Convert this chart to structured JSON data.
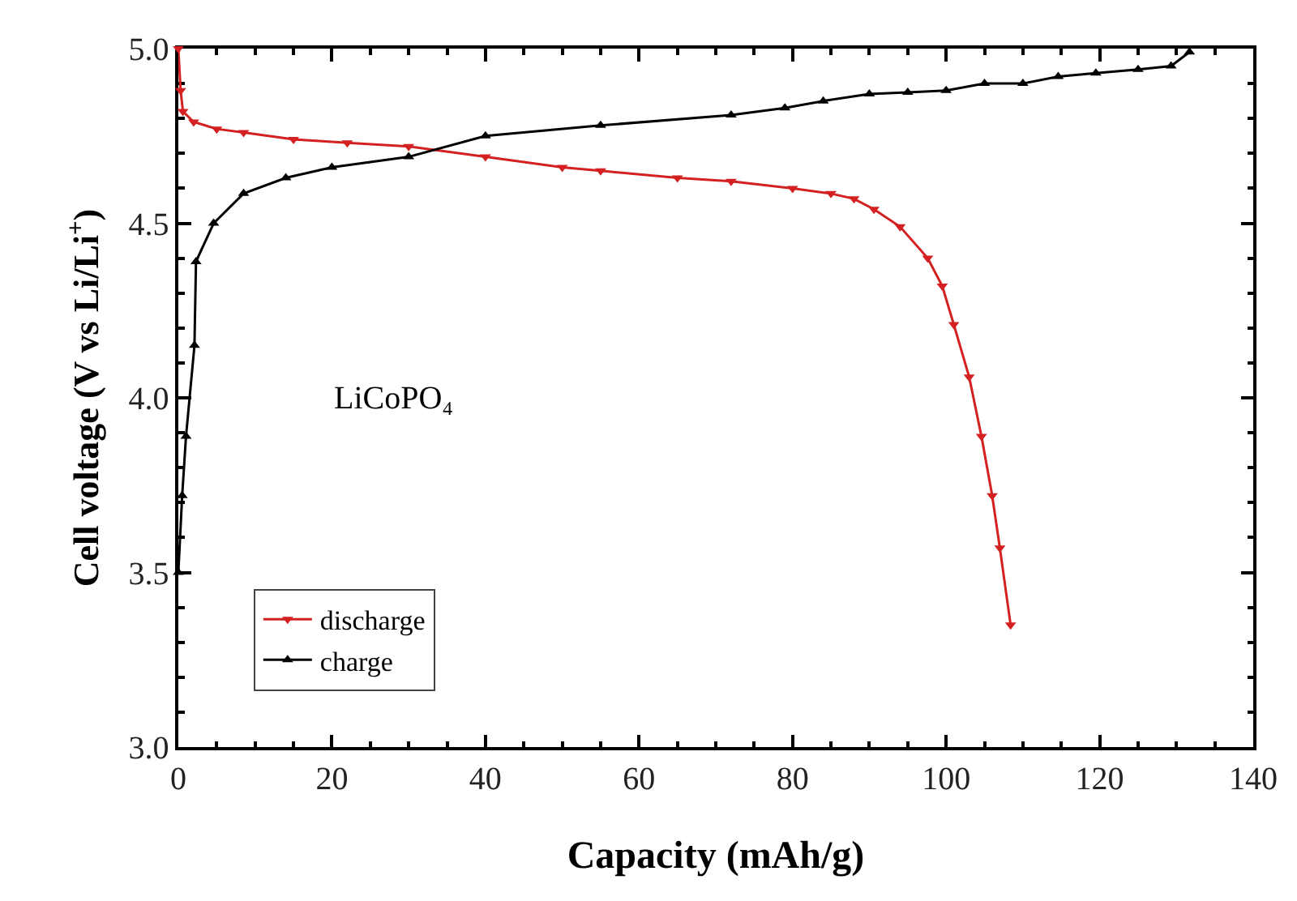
{
  "chart_data": {
    "type": "line",
    "xlabel": "Capacity (mAh/g)",
    "ylabel": "Cell voltage (V vs Li/Li$^{+}$)",
    "annotations": [
      "LiCoPO₄"
    ],
    "xlim": [
      0,
      140
    ],
    "xticks": [
      0,
      20,
      40,
      60,
      80,
      100,
      120,
      140
    ],
    "ylim": [
      3.0,
      5.0
    ],
    "yticks": [
      {
        "value": 3.0,
        "label": "3.0"
      },
      3.5,
      {
        "value": 4.0,
        "label": "4.0"
      },
      4.5,
      {
        "value": 5.0,
        "label": "5.0"
      }
    ],
    "grid": false,
    "legend": "bottom left",
    "line_style": "solid",
    "series": [
      {
        "name": "discharge",
        "color": "#d42020",
        "marker": "triangle-down",
        "x": [
          0,
          0.3,
          0.6,
          2,
          5,
          8.5,
          15,
          22,
          30,
          40,
          50,
          55,
          65,
          72,
          80,
          85,
          88,
          90.6,
          94,
          97.6,
          99.5,
          101,
          103,
          104.6,
          106,
          107,
          108.4
        ],
        "values": [
          5.0,
          4.88,
          4.82,
          4.79,
          4.77,
          4.76,
          4.74,
          4.73,
          4.72,
          4.69,
          4.66,
          4.65,
          4.63,
          4.62,
          4.6,
          4.585,
          4.57,
          4.54,
          4.49,
          4.4,
          4.32,
          4.21,
          4.06,
          3.89,
          3.72,
          3.57,
          3.35
        ]
      },
      {
        "name": "charge",
        "color": "#000000",
        "marker": "triangle-up",
        "x": [
          0,
          0.5,
          1,
          2.1,
          2.3,
          4.6,
          8.5,
          14,
          20,
          30,
          40,
          55,
          72,
          79,
          84,
          90,
          95,
          100,
          105,
          110,
          114.6,
          119.5,
          125,
          129.3,
          131.7
        ],
        "values": [
          3.5,
          3.72,
          3.89,
          4.15,
          4.39,
          4.5,
          4.585,
          4.63,
          4.66,
          4.69,
          4.75,
          4.78,
          4.81,
          4.83,
          4.85,
          4.87,
          4.875,
          4.88,
          4.9,
          4.9,
          4.92,
          4.93,
          4.94,
          4.95,
          4.99
        ]
      }
    ]
  }
}
